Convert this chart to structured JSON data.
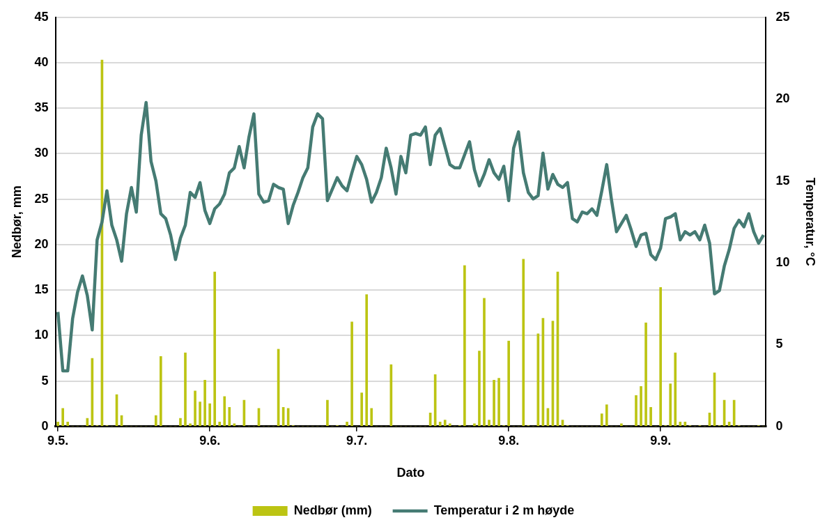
{
  "chart_data": {
    "type": "bar",
    "xlabel": "Dato",
    "ylabel": "Nedbør, mm",
    "y2label": "Temperatur, °C",
    "grid": "y",
    "legend": "bottom",
    "categories": [
      "9.5.",
      null,
      null,
      null,
      null,
      null,
      null,
      null,
      null,
      null,
      null,
      null,
      null,
      null,
      null,
      null,
      null,
      null,
      null,
      null,
      null,
      null,
      null,
      null,
      null,
      null,
      null,
      null,
      null,
      null,
      null,
      "9.6.",
      null,
      null,
      null,
      null,
      null,
      null,
      null,
      null,
      null,
      null,
      null,
      null,
      null,
      null,
      null,
      null,
      null,
      null,
      null,
      null,
      null,
      null,
      null,
      null,
      null,
      null,
      null,
      null,
      null,
      "9.7.",
      null,
      null,
      null,
      null,
      null,
      null,
      null,
      null,
      null,
      null,
      null,
      null,
      null,
      null,
      null,
      null,
      null,
      null,
      null,
      null,
      null,
      null,
      null,
      null,
      null,
      null,
      null,
      null,
      null,
      null,
      "9.8.",
      null,
      null,
      null,
      null,
      null,
      null,
      null,
      null,
      null,
      null,
      null,
      null,
      null,
      null,
      null,
      null,
      null,
      null,
      null,
      null,
      null,
      null,
      null,
      null,
      null,
      null,
      null,
      null,
      null,
      null,
      "9.9.",
      null,
      null,
      null,
      null,
      null,
      null,
      null,
      null,
      null,
      null,
      null,
      null,
      null,
      null,
      null,
      null,
      null,
      null,
      null,
      null,
      null
    ],
    "ylim": [
      0,
      45
    ],
    "yticks": [
      0,
      5,
      10,
      15,
      20,
      25,
      30,
      35,
      40,
      45
    ],
    "y2lim": [
      0,
      25
    ],
    "y2ticks": [
      0,
      5,
      10,
      15,
      20,
      25
    ],
    "series": [
      {
        "name": "Nedbør (mm)",
        "color": "#bcc413",
        "values": [
          0.5,
          2.0,
          0.5,
          0,
          0,
          0,
          0.9,
          7.5,
          0.1,
          40.3,
          0.1,
          0,
          3.5,
          1.2,
          0,
          0,
          0,
          0,
          0,
          0,
          1.2,
          7.7,
          0,
          0,
          0,
          0.9,
          8.1,
          0.3,
          3.9,
          2.7,
          5.1,
          2.5,
          17.0,
          0.5,
          3.3,
          2.1,
          0.3,
          0,
          2.9,
          0,
          0,
          2.0,
          0,
          0,
          0,
          8.5,
          2.1,
          2.0,
          0.1,
          0,
          0,
          0,
          0,
          0,
          0,
          2.9,
          0,
          0.1,
          0,
          0.5,
          11.5,
          0,
          3.7,
          14.5,
          2.0,
          0,
          0,
          0,
          6.8,
          0,
          0,
          0,
          0,
          0,
          0,
          0,
          1.5,
          5.7,
          0.5,
          0.7,
          0.3,
          0,
          0.1,
          17.7,
          0,
          0.3,
          8.3,
          14.1,
          0.7,
          5.1,
          5.3,
          0.1,
          9.4,
          0,
          0,
          18.4,
          0.1,
          0,
          10.2,
          11.9,
          2.0,
          11.6,
          17.0,
          0.7,
          0.1,
          0,
          0,
          0,
          0,
          0,
          0,
          1.4,
          2.4,
          0,
          0,
          0.3,
          0,
          0,
          3.4,
          4.4,
          11.4,
          2.1,
          0,
          15.3,
          0.1,
          4.7,
          8.1,
          0.5,
          0.5,
          0.1,
          0,
          0.1,
          0,
          1.5,
          5.9,
          0.1,
          2.9,
          0.5,
          2.9,
          0.1,
          0,
          0,
          0,
          0.1,
          0
        ]
      },
      {
        "name": "Temperatur i 2 m høyde",
        "type": "line",
        "axis": "y2",
        "color": "#457b73",
        "values": [
          7.0,
          3.4,
          3.4,
          6.6,
          8.2,
          9.2,
          8.0,
          5.9,
          11.4,
          12.5,
          14.4,
          12.3,
          11.4,
          10.1,
          13.0,
          14.6,
          13.1,
          17.8,
          19.8,
          16.2,
          15.0,
          13.0,
          12.7,
          11.7,
          10.2,
          11.5,
          12.3,
          14.3,
          14.0,
          14.9,
          13.2,
          12.4,
          13.3,
          13.6,
          14.2,
          15.5,
          15.8,
          17.1,
          15.8,
          17.7,
          19.1,
          14.2,
          13.7,
          13.8,
          14.8,
          14.6,
          14.5,
          12.4,
          13.5,
          14.3,
          15.2,
          15.8,
          18.3,
          19.1,
          18.8,
          13.8,
          14.5,
          15.2,
          14.7,
          14.4,
          15.5,
          16.5,
          16.0,
          15.1,
          13.7,
          14.3,
          15.2,
          17.0,
          15.8,
          14.2,
          16.5,
          15.5,
          17.8,
          17.9,
          17.8,
          18.3,
          16.0,
          17.8,
          18.2,
          17.1,
          16.0,
          15.8,
          15.8,
          16.6,
          17.4,
          15.7,
          14.7,
          15.4,
          16.3,
          15.5,
          15.1,
          15.9,
          13.8,
          17.0,
          18.0,
          15.5,
          14.3,
          13.9,
          14.1,
          16.7,
          14.5,
          15.4,
          14.8,
          14.6,
          14.9,
          12.7,
          12.5,
          13.1,
          13.0,
          13.3,
          12.9,
          14.4,
          16.0,
          13.8,
          11.9,
          12.4,
          12.9,
          12.0,
          11.0,
          11.7,
          11.8,
          10.5,
          10.2,
          10.9,
          12.7,
          12.8,
          13.0,
          11.4,
          11.9,
          11.7,
          11.9,
          11.4,
          12.3,
          11.2,
          8.1,
          8.3,
          9.8,
          10.8,
          12.1,
          12.6,
          12.2,
          13.0,
          11.9,
          11.2,
          11.7
        ]
      }
    ]
  }
}
